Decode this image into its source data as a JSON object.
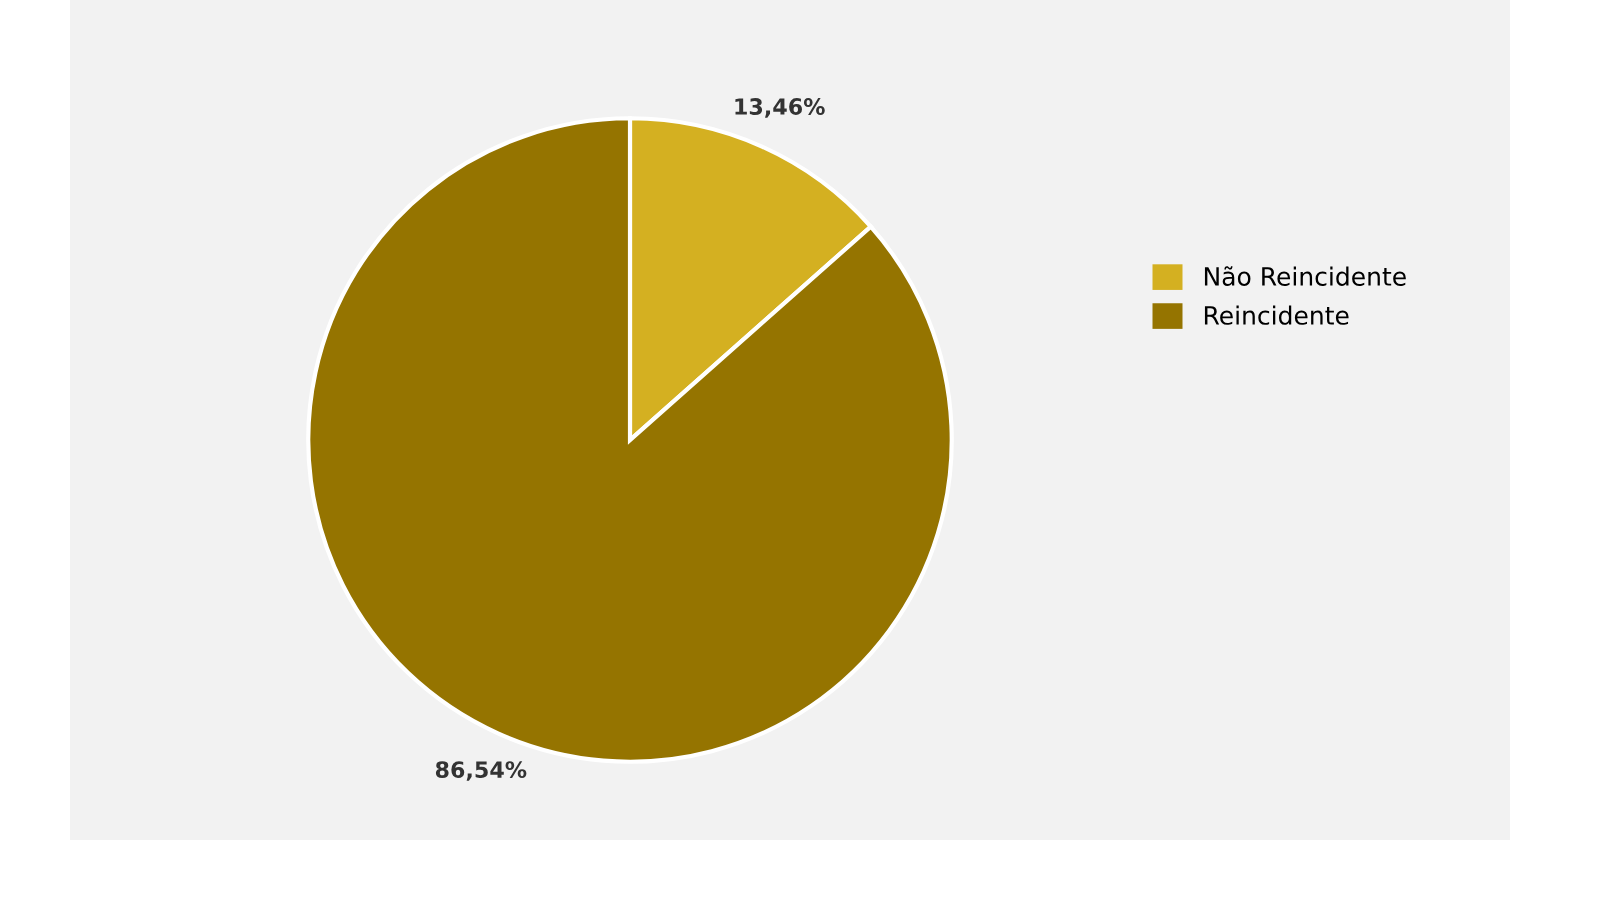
{
  "chart_data": {
    "type": "pie",
    "categories": [
      "Não Reincidente",
      "Reincidente"
    ],
    "values": [
      13.46,
      86.54
    ],
    "colors": [
      "#d4b021",
      "#957400"
    ],
    "value_labels": [
      "13,46%",
      "86,54%"
    ],
    "legend": "right"
  }
}
